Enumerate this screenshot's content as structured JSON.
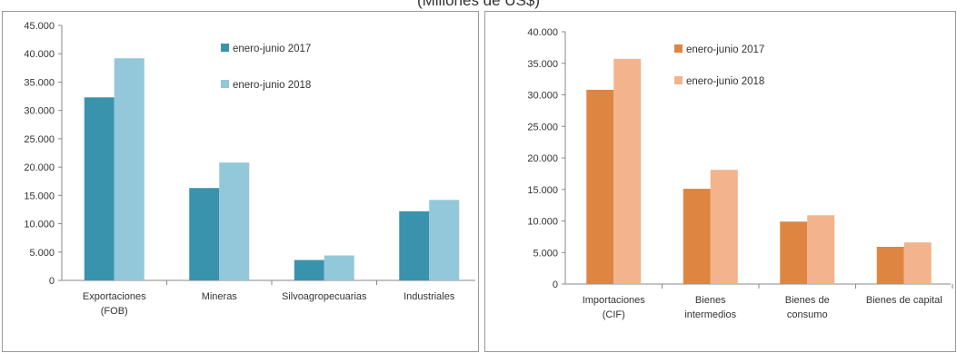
{
  "title": "(Millones de US$)",
  "chart_data": [
    {
      "type": "bar",
      "categories": [
        "Exportaciones\n(FOB)",
        "Mineras",
        "Silvoagropecuarias",
        "Industriales"
      ],
      "series": [
        {
          "name": "enero-junio 2017",
          "values": [
            32300,
            16300,
            3600,
            12200
          ],
          "color": "#3a93ad"
        },
        {
          "name": "enero-junio 2018",
          "values": [
            39200,
            20800,
            4400,
            14200
          ],
          "color": "#92c8da"
        }
      ],
      "ylim": [
        0,
        45000
      ],
      "ytick_labels": [
        "0",
        "5.000",
        "10.000",
        "15.000",
        "20.000",
        "25.000",
        "30.000",
        "35.000",
        "40.000",
        "45.000"
      ],
      "grid": false,
      "legend": "top-center"
    },
    {
      "type": "bar",
      "categories": [
        "Importaciones\n(CIF)",
        "Bienes\nintermedios",
        "Bienes de\nconsumo",
        "Bienes de capital"
      ],
      "series": [
        {
          "name": "enero-junio 2017",
          "values": [
            30800,
            15100,
            9900,
            5900
          ],
          "color": "#de8641"
        },
        {
          "name": "enero-junio 2018",
          "values": [
            35700,
            18100,
            10900,
            6600
          ],
          "color": "#f3b38c"
        }
      ],
      "ylim": [
        0,
        40000
      ],
      "ytick_labels": [
        "0",
        "5.000",
        "10.000",
        "15.000",
        "20.000",
        "25.000",
        "30.000",
        "35.000",
        "40.000"
      ],
      "grid": false,
      "legend": "top-center"
    }
  ]
}
